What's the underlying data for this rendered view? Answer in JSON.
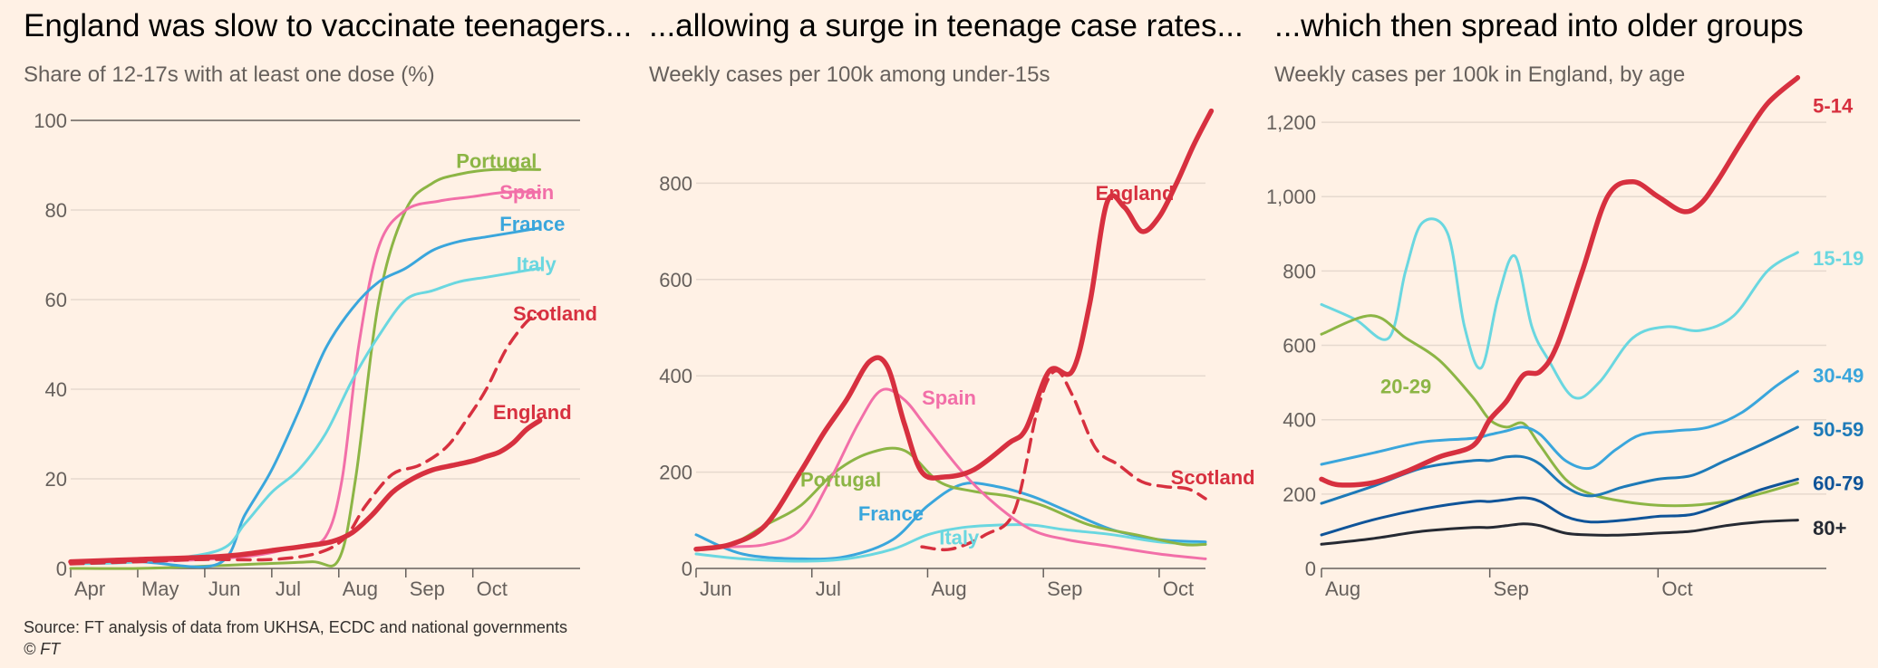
{
  "source_text": "Source: FT analysis of data from UKHSA, ECDC and national governments",
  "copyright_text": "© FT",
  "chart_data": [
    {
      "type": "line",
      "title": "England was slow to vaccinate teenagers...",
      "subtitle": "Share of 12-17s with at least one dose (%)",
      "ylim": [
        0,
        100
      ],
      "yticks": [
        0,
        20,
        40,
        60,
        80,
        100
      ],
      "ytick_labels": [
        "0",
        "20",
        "40",
        "60",
        "80",
        "100"
      ],
      "xlim": [
        0,
        7.6
      ],
      "xticks": [
        0,
        1,
        2,
        3,
        4,
        5,
        6
      ],
      "xtick_labels": [
        "Apr",
        "May",
        "Jun",
        "Jul",
        "Aug",
        "Sep",
        "Oct"
      ],
      "grid": true,
      "series": [
        {
          "name": "Portugal",
          "color": "#8cb545",
          "width": 3,
          "x": [
            0,
            1,
            2,
            2.8,
            3.6,
            4,
            4.25,
            4.6,
            5.0,
            5.4,
            5.8,
            6.3,
            7.0
          ],
          "y": [
            0,
            0,
            0.5,
            1,
            1.5,
            2,
            20,
            60,
            80,
            86,
            88,
            89,
            89
          ]
        },
        {
          "name": "Spain",
          "color": "#f26fa8",
          "width": 3,
          "x": [
            0,
            1,
            2,
            2.8,
            3.4,
            3.8,
            4.05,
            4.3,
            4.6,
            5.0,
            5.5,
            6.0,
            6.5,
            7.0
          ],
          "y": [
            1,
            1.5,
            2,
            3,
            5,
            7,
            20,
            50,
            72,
            80,
            82,
            83,
            84,
            84
          ]
        },
        {
          "name": "France",
          "color": "#3aa6dc",
          "width": 3,
          "x": [
            0,
            1,
            2.2,
            2.6,
            3.0,
            3.4,
            3.8,
            4.2,
            4.6,
            5.0,
            5.4,
            5.8,
            6.2,
            6.6,
            7.0
          ],
          "y": [
            1,
            1.5,
            1,
            12,
            22,
            35,
            49,
            58,
            64,
            67,
            71,
            73,
            74,
            75,
            76
          ]
        },
        {
          "name": "Italy",
          "color": "#6ad7e0",
          "width": 3,
          "x": [
            0,
            1,
            2.2,
            2.6,
            3.0,
            3.4,
            3.8,
            4.2,
            4.6,
            5.0,
            5.4,
            5.8,
            6.2,
            6.6,
            7.0
          ],
          "y": [
            1,
            1.5,
            4,
            10,
            17,
            22,
            30,
            42,
            52,
            60,
            62,
            64,
            65,
            66,
            67
          ]
        },
        {
          "name": "Scotland",
          "color": "#d7303f",
          "width": 3.5,
          "dash": "14 9",
          "x": [
            0,
            1,
            2,
            3,
            3.7,
            4.1,
            4.4,
            4.8,
            5.2,
            5.6,
            5.9,
            6.2,
            6.5,
            6.8,
            7.0
          ],
          "y": [
            1,
            1.5,
            2,
            2,
            3.5,
            7,
            14,
            21,
            23,
            27,
            33,
            40,
            49,
            55,
            57
          ]
        },
        {
          "name": "England",
          "color": "#d7303f",
          "width": 5.5,
          "x": [
            0,
            1,
            2,
            2.5,
            3,
            3.5,
            3.9,
            4.2,
            4.5,
            4.8,
            5.1,
            5.4,
            5.7,
            6.0,
            6.2,
            6.4,
            6.6,
            6.8,
            7.0
          ],
          "y": [
            1.5,
            2,
            2.5,
            3,
            4,
            5,
            6,
            8,
            12,
            17,
            20,
            22,
            23,
            24,
            25,
            26,
            28,
            31,
            33
          ]
        }
      ],
      "labels": [
        {
          "text": "Portugal",
          "x": 5.75,
          "y": 91,
          "color": "#8cb545"
        },
        {
          "text": "Spain",
          "x": 6.4,
          "y": 84,
          "color": "#f26fa8"
        },
        {
          "text": "France",
          "x": 6.4,
          "y": 77,
          "color": "#3aa6dc"
        },
        {
          "text": "Italy",
          "x": 6.65,
          "y": 68,
          "color": "#6ad7e0"
        },
        {
          "text": "Scotland",
          "x": 6.6,
          "y": 57,
          "color": "#d7303f"
        },
        {
          "text": "England",
          "x": 6.3,
          "y": 35,
          "color": "#d7303f"
        }
      ]
    },
    {
      "type": "line",
      "title": "...allowing a surge in teenage case rates...",
      "subtitle": "Weekly cases per 100k among under-15s",
      "ylim": [
        0,
        1000
      ],
      "yticks": [
        0,
        200,
        400,
        600,
        800
      ],
      "ytick_labels": [
        "0",
        "200",
        "400",
        "600",
        "800"
      ],
      "xlim": [
        0,
        4.4
      ],
      "xticks": [
        0,
        1,
        2,
        3,
        4
      ],
      "xtick_labels": [
        "Jun",
        "Jul",
        "Aug",
        "Sep",
        "Oct"
      ],
      "grid": true,
      "series": [
        {
          "name": "France",
          "color": "#3aa6dc",
          "width": 3,
          "x": [
            0,
            0.4,
            0.9,
            1.3,
            1.7,
            2.0,
            2.3,
            2.6,
            2.9,
            3.2,
            3.6,
            4.0,
            4.4
          ],
          "y": [
            70,
            30,
            20,
            25,
            60,
            130,
            175,
            170,
            150,
            120,
            80,
            60,
            55
          ]
        },
        {
          "name": "Italy",
          "color": "#6ad7e0",
          "width": 3,
          "x": [
            0,
            0.4,
            0.9,
            1.3,
            1.7,
            2.0,
            2.3,
            2.6,
            2.9,
            3.2,
            3.6,
            4.0,
            4.4
          ],
          "y": [
            30,
            20,
            15,
            20,
            40,
            70,
            85,
            90,
            90,
            80,
            70,
            55,
            50
          ]
        },
        {
          "name": "Portugal",
          "color": "#8cb545",
          "width": 3,
          "x": [
            0,
            0.3,
            0.6,
            0.9,
            1.2,
            1.5,
            1.8,
            2.1,
            2.4,
            2.7,
            3.0,
            3.4,
            3.8,
            4.2,
            4.4
          ],
          "y": [
            40,
            50,
            90,
            130,
            200,
            240,
            245,
            180,
            160,
            150,
            130,
            90,
            70,
            50,
            50
          ]
        },
        {
          "name": "Spain",
          "color": "#f26fa8",
          "width": 3,
          "x": [
            0,
            0.3,
            0.6,
            0.9,
            1.15,
            1.4,
            1.6,
            1.8,
            2.0,
            2.3,
            2.6,
            2.9,
            3.2,
            3.6,
            4.0,
            4.4
          ],
          "y": [
            40,
            45,
            50,
            80,
            180,
            300,
            370,
            350,
            290,
            200,
            130,
            80,
            60,
            45,
            30,
            20
          ]
        },
        {
          "name": "Scotland",
          "color": "#d7303f",
          "width": 3.5,
          "dash": "14 9",
          "x": [
            1.95,
            2.2,
            2.5,
            2.75,
            2.95,
            3.1,
            3.25,
            3.45,
            3.65,
            3.85,
            4.05,
            4.25,
            4.4
          ],
          "y": [
            45,
            40,
            70,
            120,
            330,
            410,
            360,
            250,
            215,
            180,
            170,
            165,
            145
          ]
        },
        {
          "name": "England",
          "color": "#d7303f",
          "width": 5.5,
          "x": [
            0,
            0.3,
            0.6,
            0.9,
            1.1,
            1.3,
            1.5,
            1.65,
            1.8,
            1.95,
            2.15,
            2.4,
            2.7,
            2.85,
            3.05,
            3.25,
            3.4,
            3.55,
            3.7,
            3.85,
            4.0,
            4.15,
            4.3,
            4.45
          ],
          "y": [
            40,
            50,
            90,
            200,
            280,
            350,
            430,
            420,
            300,
            200,
            190,
            205,
            260,
            290,
            410,
            410,
            550,
            760,
            750,
            700,
            730,
            800,
            880,
            950
          ]
        }
      ],
      "labels": [
        {
          "text": "England",
          "x": 3.45,
          "y": 780,
          "color": "#d7303f"
        },
        {
          "text": "Spain",
          "x": 1.95,
          "y": 355,
          "color": "#f26fa8"
        },
        {
          "text": "Portugal",
          "x": 0.9,
          "y": 185,
          "color": "#8cb545"
        },
        {
          "text": "France",
          "x": 1.4,
          "y": 115,
          "color": "#3aa6dc"
        },
        {
          "text": "Italy",
          "x": 2.1,
          "y": 65,
          "color": "#6ad7e0"
        },
        {
          "text": "Scotland",
          "x": 4.1,
          "y": 190,
          "color": "#d7303f"
        }
      ]
    },
    {
      "type": "line",
      "title": "...which then spread into older groups",
      "subtitle": "Weekly cases per 100k in England, by age",
      "ylim": [
        0,
        1300
      ],
      "yticks": [
        0,
        200,
        400,
        600,
        800,
        1000,
        1200
      ],
      "ytick_labels": [
        "0",
        "200",
        "400",
        "600",
        "800",
        "1,000",
        "1,200"
      ],
      "xlim": [
        0,
        3.0
      ],
      "xticks": [
        0,
        1,
        2
      ],
      "xtick_labels": [
        "Aug",
        "Sep",
        "Oct"
      ],
      "grid": true,
      "series": [
        {
          "name": "15-19",
          "color": "#6ad7e0",
          "width": 3,
          "x": [
            0,
            0.2,
            0.4,
            0.5,
            0.6,
            0.75,
            0.85,
            0.95,
            1.05,
            1.15,
            1.25,
            1.35,
            1.5,
            1.65,
            1.85,
            2.05,
            2.25,
            2.45,
            2.65,
            2.83
          ],
          "y": [
            710,
            670,
            620,
            800,
            930,
            900,
            650,
            540,
            730,
            840,
            650,
            560,
            460,
            500,
            620,
            650,
            640,
            680,
            800,
            850
          ]
        },
        {
          "name": "20-29",
          "color": "#8cb545",
          "width": 3,
          "x": [
            0,
            0.3,
            0.5,
            0.7,
            0.9,
            1.0,
            1.1,
            1.2,
            1.3,
            1.45,
            1.6,
            1.8,
            2.0,
            2.2,
            2.4,
            2.6,
            2.83
          ],
          "y": [
            630,
            680,
            620,
            560,
            460,
            400,
            380,
            390,
            330,
            240,
            200,
            180,
            170,
            170,
            180,
            200,
            230
          ]
        },
        {
          "name": "30-49",
          "color": "#3aa6dc",
          "width": 3,
          "x": [
            0,
            0.3,
            0.6,
            0.9,
            1.0,
            1.1,
            1.2,
            1.3,
            1.45,
            1.6,
            1.75,
            1.9,
            2.1,
            2.3,
            2.5,
            2.7,
            2.83
          ],
          "y": [
            280,
            310,
            340,
            350,
            360,
            370,
            380,
            360,
            290,
            270,
            320,
            360,
            370,
            380,
            420,
            490,
            530
          ]
        },
        {
          "name": "50-59",
          "color": "#1d7ab8",
          "width": 3,
          "x": [
            0,
            0.3,
            0.6,
            0.9,
            1.0,
            1.1,
            1.2,
            1.3,
            1.45,
            1.6,
            1.8,
            2.0,
            2.2,
            2.4,
            2.6,
            2.83
          ],
          "y": [
            175,
            220,
            270,
            290,
            290,
            300,
            300,
            280,
            220,
            195,
            220,
            240,
            250,
            290,
            330,
            380
          ]
        },
        {
          "name": "60-79",
          "color": "#0f5499",
          "width": 3,
          "x": [
            0,
            0.3,
            0.6,
            0.9,
            1.0,
            1.1,
            1.2,
            1.3,
            1.45,
            1.6,
            1.8,
            2.0,
            2.2,
            2.4,
            2.6,
            2.83
          ],
          "y": [
            90,
            130,
            160,
            180,
            180,
            185,
            190,
            180,
            140,
            125,
            130,
            140,
            145,
            175,
            210,
            240
          ]
        },
        {
          "name": "80+",
          "color": "#262a33",
          "width": 3,
          "x": [
            0,
            0.3,
            0.6,
            0.9,
            1.0,
            1.1,
            1.2,
            1.3,
            1.45,
            1.6,
            1.8,
            2.0,
            2.2,
            2.4,
            2.6,
            2.83
          ],
          "y": [
            65,
            80,
            100,
            110,
            110,
            115,
            120,
            115,
            95,
            90,
            90,
            95,
            100,
            115,
            125,
            130
          ]
        },
        {
          "name": "5-14",
          "color": "#d7303f",
          "width": 5.5,
          "x": [
            0,
            0.1,
            0.3,
            0.5,
            0.7,
            0.9,
            1.0,
            1.1,
            1.2,
            1.3,
            1.4,
            1.55,
            1.7,
            1.85,
            2.0,
            2.15,
            2.25,
            2.35,
            2.5,
            2.65,
            2.83
          ],
          "y": [
            240,
            225,
            230,
            260,
            300,
            330,
            400,
            450,
            520,
            530,
            600,
            800,
            1000,
            1040,
            1000,
            960,
            980,
            1040,
            1150,
            1250,
            1320
          ]
        }
      ],
      "labels": [
        {
          "text": "5-14",
          "x": 2.92,
          "y": 1245,
          "color": "#d7303f"
        },
        {
          "text": "15-19",
          "x": 2.92,
          "y": 835,
          "color": "#6ad7e0"
        },
        {
          "text": "20-29",
          "x": 0.35,
          "y": 490,
          "color": "#8cb545"
        },
        {
          "text": "30-49",
          "x": 2.92,
          "y": 520,
          "color": "#3aa6dc"
        },
        {
          "text": "50-59",
          "x": 2.92,
          "y": 375,
          "color": "#1d7ab8"
        },
        {
          "text": "60-79",
          "x": 2.92,
          "y": 230,
          "color": "#0f5499"
        },
        {
          "text": "80+",
          "x": 2.92,
          "y": 110,
          "color": "#262a33"
        }
      ]
    }
  ]
}
